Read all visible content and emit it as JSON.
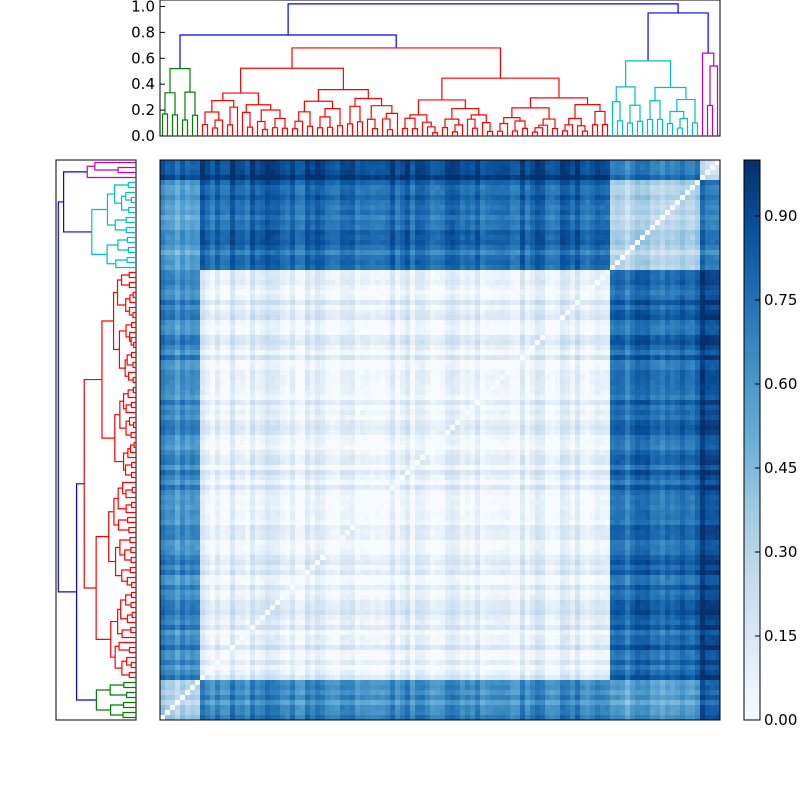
{
  "chart_data": [
    {
      "type": "dendrogram",
      "position": "top",
      "ylim": [
        0,
        1.05
      ],
      "yticks": [
        "0.0",
        "0.2",
        "0.4",
        "0.6",
        "0.8",
        "1.0"
      ],
      "ytick_values": [
        0,
        0.2,
        0.4,
        0.6,
        0.8,
        1.0
      ],
      "n_leaves": 112,
      "clusters": [
        {
          "color": "#008000",
          "leaf_start": 0,
          "leaf_end": 8
        },
        {
          "color": "#ff0000",
          "leaf_start": 8,
          "leaf_end": 90
        },
        {
          "color": "#00bfbf",
          "leaf_start": 90,
          "leaf_end": 108
        },
        {
          "color": "#bf00bf",
          "leaf_start": 108,
          "leaf_end": 112
        }
      ],
      "link_color": "#0000ff",
      "cluster_heights": [
        0.52,
        0.68,
        0.58,
        0.64
      ],
      "top_merge_heights": [
        0.78,
        0.95,
        1.02
      ]
    },
    {
      "type": "dendrogram",
      "position": "left",
      "mirrors": "top"
    },
    {
      "type": "heatmap",
      "n_rows": 112,
      "n_cols": 112,
      "colormap": "Blues",
      "vmin": 0.0,
      "vmax": 1.0,
      "block_boundaries": [
        0,
        8,
        90,
        108,
        112
      ],
      "within_block_distance": [
        0.3,
        0.1,
        0.3,
        0.2
      ],
      "diagonal_value": 0.0
    },
    {
      "type": "colorbar",
      "colormap": "Blues",
      "ylim": [
        0,
        1.0
      ],
      "ticks": [
        "0.00",
        "0.15",
        "0.30",
        "0.45",
        "0.60",
        "0.75",
        "0.90"
      ],
      "tick_values": [
        0,
        0.15,
        0.3,
        0.45,
        0.6,
        0.75,
        0.9
      ]
    }
  ]
}
